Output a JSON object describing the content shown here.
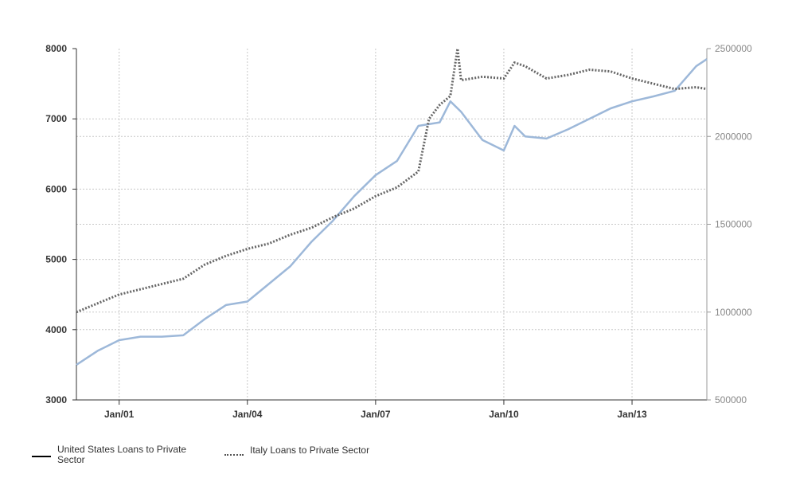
{
  "chart_data": {
    "type": "line",
    "x_tick_labels": [
      "Jan/01",
      "Jan/04",
      "Jan/07",
      "Jan/10",
      "Jan/13"
    ],
    "x_range": [
      "2000-01",
      "2014-10"
    ],
    "y_left": {
      "min": 3000,
      "max": 8000,
      "ticks": [
        "3000",
        "4000",
        "5000",
        "6000",
        "7000",
        "8000"
      ]
    },
    "y_right": {
      "min": 500000,
      "max": 2500000,
      "ticks": [
        "500000",
        "1000000",
        "1500000",
        "2000000",
        "2500000"
      ]
    },
    "grid": true,
    "legend_position": "bottom-left",
    "colors": {
      "us_line": "#9db8d9",
      "italy_line": "#666666",
      "grid": "#c8c8c8",
      "axis": "#333333"
    },
    "series": [
      {
        "name": "United States Loans to Private Sector",
        "axis": "left",
        "x": [
          "2000-01",
          "2000-07",
          "2001-01",
          "2001-07",
          "2002-01",
          "2002-07",
          "2003-01",
          "2003-07",
          "2004-01",
          "2004-07",
          "2005-01",
          "2005-07",
          "2006-01",
          "2006-07",
          "2007-01",
          "2007-07",
          "2008-01",
          "2008-07",
          "2008-10",
          "2009-01",
          "2009-07",
          "2010-01",
          "2010-04",
          "2010-07",
          "2011-01",
          "2011-07",
          "2012-01",
          "2012-07",
          "2013-01",
          "2013-07",
          "2014-01",
          "2014-07",
          "2014-10"
        ],
        "values": [
          3500,
          3700,
          3850,
          3900,
          3900,
          3920,
          4150,
          4350,
          4400,
          4650,
          4900,
          5250,
          5550,
          5900,
          6200,
          6400,
          6900,
          6950,
          7250,
          7100,
          6700,
          6550,
          6900,
          6750,
          6720,
          6850,
          7000,
          7150,
          7250,
          7320,
          7400,
          7750,
          7850
        ]
      },
      {
        "name": "Italy Loans to Private Sector",
        "axis": "right",
        "x": [
          "2000-01",
          "2000-07",
          "2001-01",
          "2001-07",
          "2002-01",
          "2002-07",
          "2003-01",
          "2003-07",
          "2004-01",
          "2004-07",
          "2005-01",
          "2005-07",
          "2006-01",
          "2006-07",
          "2007-01",
          "2007-07",
          "2008-01",
          "2008-04",
          "2008-07",
          "2008-10",
          "2008-12",
          "2009-01",
          "2009-07",
          "2010-01",
          "2010-04",
          "2010-07",
          "2011-01",
          "2011-07",
          "2012-01",
          "2012-07",
          "2013-01",
          "2013-07",
          "2014-01",
          "2014-07",
          "2014-10"
        ],
        "values": [
          1000000,
          1050000,
          1100000,
          1130000,
          1160000,
          1190000,
          1270000,
          1320000,
          1360000,
          1390000,
          1440000,
          1480000,
          1540000,
          1590000,
          1660000,
          1710000,
          1800000,
          2100000,
          2180000,
          2230000,
          2500000,
          2320000,
          2340000,
          2330000,
          2420000,
          2400000,
          2330000,
          2350000,
          2380000,
          2370000,
          2330000,
          2300000,
          2270000,
          2280000,
          2270000
        ]
      }
    ]
  },
  "legend": {
    "us_label": "United States Loans to Private\nSector",
    "italy_label": "Italy Loans to Private Sector"
  }
}
